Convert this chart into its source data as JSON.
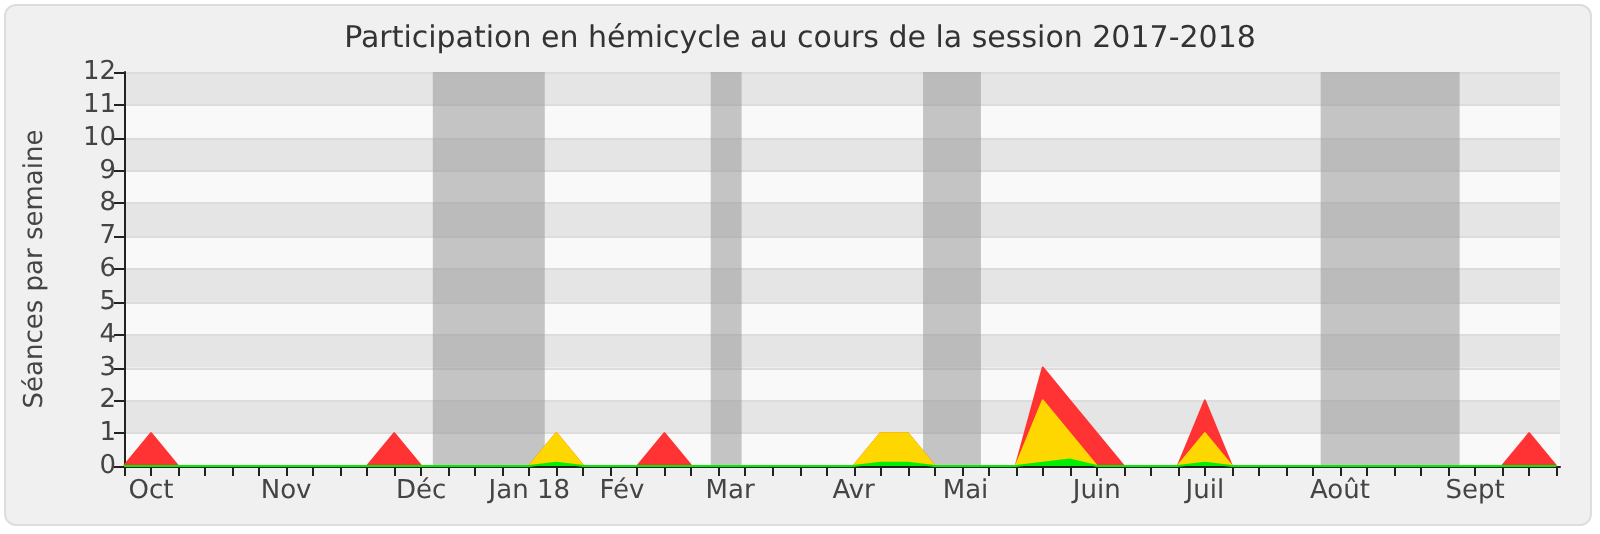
{
  "chart_data": {
    "type": "area",
    "title": "Participation en hémicycle au cours de la session 2017-2018",
    "ylabel": "Séances par semaine",
    "x": [
      "2017-09-25",
      "2017-10-02",
      "2017-10-09",
      "2017-10-16",
      "2017-10-23",
      "2017-10-30",
      "2017-11-06",
      "2017-11-13",
      "2017-11-20",
      "2017-11-27",
      "2017-12-04",
      "2017-12-11",
      "2017-12-18",
      "2017-12-25",
      "2018-01-01",
      "2018-01-08",
      "2018-01-15",
      "2018-01-22",
      "2018-01-29",
      "2018-02-05",
      "2018-02-12",
      "2018-02-19",
      "2018-02-26",
      "2018-03-05",
      "2018-03-12",
      "2018-03-19",
      "2018-03-26",
      "2018-04-02",
      "2018-04-09",
      "2018-04-16",
      "2018-04-23",
      "2018-04-30",
      "2018-05-07",
      "2018-05-14",
      "2018-05-21",
      "2018-05-28",
      "2018-06-04",
      "2018-06-11",
      "2018-06-18",
      "2018-06-25",
      "2018-07-02",
      "2018-07-09",
      "2018-07-16",
      "2018-07-23",
      "2018-07-30",
      "2018-08-06",
      "2018-08-13",
      "2018-08-20",
      "2018-08-27",
      "2018-09-03",
      "2018-09-10",
      "2018-09-17",
      "2018-09-24",
      "2018-10-01"
    ],
    "series": [
      {
        "color": "#ff3333",
        "values": [
          0,
          1,
          0,
          0,
          0,
          0,
          0,
          0,
          0,
          0,
          1,
          0,
          0,
          0,
          0,
          0,
          1,
          0,
          0,
          0,
          1,
          0,
          0,
          0,
          0,
          0,
          0,
          0,
          1,
          1,
          0,
          0,
          0,
          0,
          3,
          2,
          1,
          0,
          0,
          0,
          2,
          0,
          0,
          0,
          0,
          0,
          0,
          0,
          0,
          0,
          0,
          0,
          1,
          0
        ]
      },
      {
        "color": "#ffd700",
        "values": [
          0,
          0,
          0,
          0,
          0,
          0,
          0,
          0,
          0,
          0,
          0,
          0,
          0,
          0,
          0,
          0,
          1,
          0,
          0,
          0,
          0,
          0,
          0,
          0,
          0,
          0,
          0,
          0,
          1,
          1,
          0,
          0,
          0,
          0,
          2,
          1,
          0,
          0,
          0,
          0,
          1,
          0,
          0,
          0,
          0,
          0,
          0,
          0,
          0,
          0,
          0,
          0,
          0,
          0
        ]
      },
      {
        "color": "#00ee00",
        "values": [
          0,
          0,
          0,
          0,
          0,
          0,
          0,
          0,
          0,
          0,
          0,
          0,
          0,
          0,
          0,
          0,
          0.1,
          0,
          0,
          0,
          0,
          0,
          0,
          0,
          0,
          0,
          0,
          0,
          0.1,
          0.1,
          0,
          0,
          0,
          0,
          0.1,
          0.2,
          0,
          0,
          0,
          0,
          0.1,
          0,
          0,
          0,
          0,
          0,
          0,
          0,
          0,
          0,
          0,
          0,
          0,
          0
        ]
      }
    ],
    "xlim": [
      "2017-09-25",
      "2018-10-02"
    ],
    "xticks": [
      {
        "value": "2017-10-02",
        "label": "Oct"
      },
      {
        "value": "2017-11-06",
        "label": "Nov"
      },
      {
        "value": "2017-12-11",
        "label": "Déc"
      },
      {
        "value": "2018-01-08",
        "label": "Jan 18"
      },
      {
        "value": "2018-02-01",
        "label": "Fév"
      },
      {
        "value": "2018-03-01",
        "label": "Mar"
      },
      {
        "value": "2018-04-02",
        "label": "Avr"
      },
      {
        "value": "2018-05-01",
        "label": "Mai"
      },
      {
        "value": "2018-06-04",
        "label": "Juin"
      },
      {
        "value": "2018-07-02",
        "label": "Juil"
      },
      {
        "value": "2018-08-06",
        "label": "Août"
      },
      {
        "value": "2018-09-10",
        "label": "Sept"
      }
    ],
    "ylim": [
      0,
      12
    ],
    "yticks": [
      0,
      1,
      2,
      3,
      4,
      5,
      6,
      7,
      8,
      9,
      10,
      11,
      12
    ],
    "bands": [
      {
        "axis": "x",
        "from": "2017-12-14",
        "to": "2018-01-12",
        "color": "#999999"
      },
      {
        "axis": "x",
        "from": "2018-02-24",
        "to": "2018-03-04",
        "color": "#999999"
      },
      {
        "axis": "x",
        "from": "2018-04-20",
        "to": "2018-05-05",
        "color": "#999999"
      },
      {
        "axis": "x",
        "from": "2018-08-01",
        "to": "2018-09-06",
        "color": "#999999"
      }
    ],
    "grid": "y",
    "marker": "none"
  }
}
